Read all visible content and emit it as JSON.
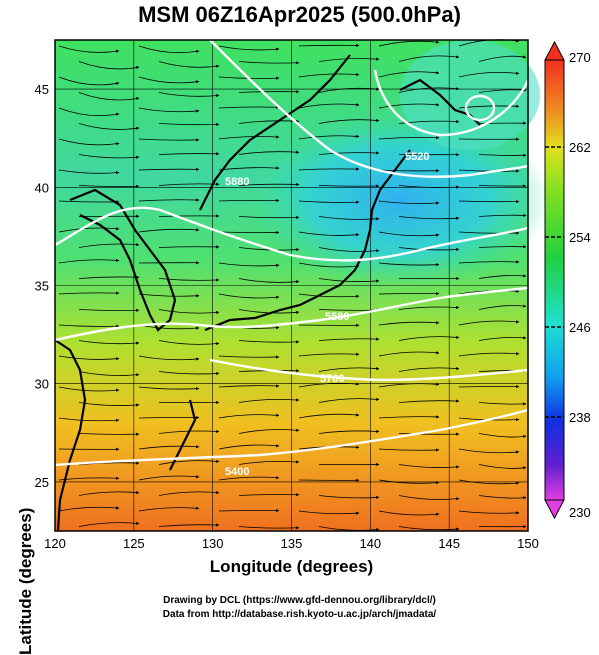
{
  "title": "MSM 06Z16Apr2025 (500.0hPa)",
  "axes": {
    "xlabel": "Longitude (degrees)",
    "ylabel": "Latitude  (degrees)",
    "xticks": [
      "120",
      "125",
      "130",
      "135",
      "140",
      "145",
      "150"
    ],
    "yticks": [
      "25",
      "30",
      "35",
      "40",
      "45"
    ],
    "xlim": [
      120,
      150
    ],
    "ylim": [
      22.5,
      47.5
    ]
  },
  "colorbar": {
    "ticks": [
      "270",
      "262",
      "254",
      "246",
      "238",
      "230"
    ],
    "range": [
      230,
      270
    ],
    "colors": [
      "#e040e0",
      "#6020d0",
      "#1030e0",
      "#10a0f0",
      "#20e0d0",
      "#30e060",
      "#80e020",
      "#e0e020",
      "#f0a020",
      "#f06020"
    ]
  },
  "contour_labels": [
    "5400",
    "5520",
    "5580",
    "5760",
    "5880"
  ],
  "credits": {
    "line1": "Drawing by DCL (https://www.gfd-dennou.org/library/dcl/)",
    "line2": "Data from http://database.rish.kyoto-u.ac.jp/arch/jmadata/"
  }
}
